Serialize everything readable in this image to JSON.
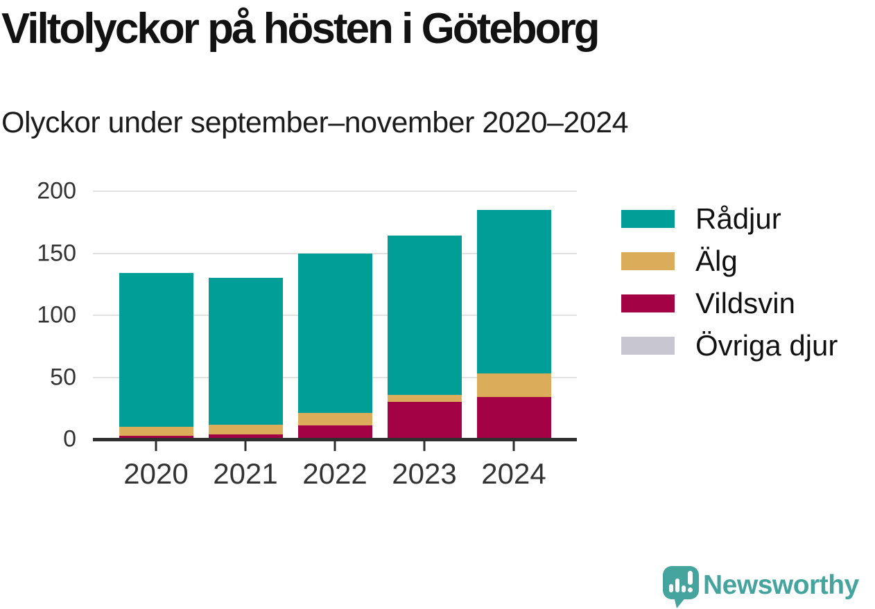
{
  "header": {
    "title": "Viltolyckor på hösten i Göteborg",
    "subtitle": "Olyckor under september–november 2020–2024"
  },
  "chart_data": {
    "type": "bar",
    "stacked": true,
    "categories": [
      "2020",
      "2021",
      "2022",
      "2023",
      "2024"
    ],
    "series": [
      {
        "name": "Rådjur",
        "color": "#009E96",
        "values": [
          124,
          118,
          129,
          128,
          132
        ]
      },
      {
        "name": "Älg",
        "color": "#DBAD5B",
        "values": [
          7,
          8,
          10,
          6,
          19
        ]
      },
      {
        "name": "Vildsvin",
        "color": "#A30345",
        "values": [
          3,
          4,
          11,
          30,
          34
        ]
      },
      {
        "name": "Övriga djur",
        "color": "#C8C7D1",
        "values": [
          0,
          0,
          0,
          0,
          0
        ]
      }
    ],
    "totals": [
      134,
      130,
      150,
      164,
      185
    ],
    "title": "Viltolyckor på hösten i Göteborg",
    "xlabel": "",
    "ylabel": "",
    "ylim": [
      0,
      200
    ],
    "yticks": [
      0,
      50,
      100,
      150,
      200
    ],
    "grid": "horizontal",
    "legend_position": "right"
  },
  "colors": {
    "grid": "#e0e0e0",
    "axis": "#2f2f2f",
    "axis_text": "#333333",
    "title_text": "#121212"
  },
  "branding": {
    "logo_text": "Newsworthy",
    "logo_color": "#45A49D",
    "logo_icon": "bar-chart-speech-bubble"
  }
}
